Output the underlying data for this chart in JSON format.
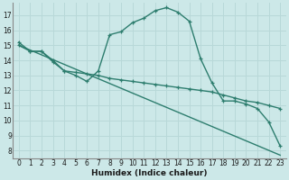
{
  "xlabel": "Humidex (Indice chaleur)",
  "bg_color": "#cce8e8",
  "line_color": "#2d7d6e",
  "grid_color": "#b8d8d8",
  "xlim": [
    -0.5,
    23.5
  ],
  "ylim": [
    7.5,
    17.8
  ],
  "yticks": [
    8,
    9,
    10,
    11,
    12,
    13,
    14,
    15,
    16,
    17
  ],
  "xticks": [
    0,
    1,
    2,
    3,
    4,
    5,
    6,
    7,
    8,
    9,
    10,
    11,
    12,
    13,
    14,
    15,
    16,
    17,
    18,
    19,
    20,
    21,
    22,
    23
  ],
  "line1_x": [
    0,
    1,
    2,
    3,
    4,
    5,
    6,
    7,
    8,
    9,
    10,
    11,
    12,
    13,
    14,
    15,
    16,
    17,
    18,
    19,
    20,
    21,
    22,
    23
  ],
  "line1_y": [
    15.2,
    14.6,
    14.6,
    14.0,
    13.3,
    13.0,
    12.6,
    13.3,
    15.7,
    15.9,
    16.5,
    16.8,
    17.3,
    17.5,
    17.2,
    16.6,
    14.1,
    12.5,
    11.3,
    11.3,
    11.1,
    10.8,
    9.9,
    8.3
  ],
  "line2_x": [
    0,
    1,
    2,
    3,
    4,
    5,
    6,
    7,
    8,
    9,
    10,
    11,
    12,
    13,
    14,
    15,
    16,
    17,
    18,
    19,
    20,
    21,
    22,
    23
  ],
  "line2_y": [
    15.0,
    14.6,
    14.6,
    13.9,
    13.3,
    13.2,
    13.1,
    13.0,
    12.8,
    12.7,
    12.6,
    12.5,
    12.4,
    12.3,
    12.2,
    12.1,
    12.0,
    11.9,
    11.7,
    11.5,
    11.3,
    11.2,
    11.0,
    10.8
  ],
  "line3_x": [
    0,
    23
  ],
  "line3_y": [
    15.0,
    7.7
  ]
}
